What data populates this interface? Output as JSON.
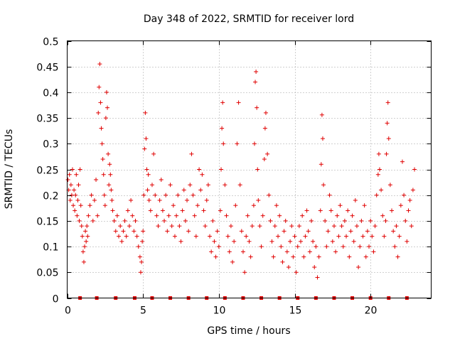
{
  "chart_data": {
    "type": "scatter",
    "title": "Day 348 of 2022, SRMTID for receiver lord",
    "xlabel": "GPS time / hours",
    "ylabel": "SRMTID / TECUs",
    "xlim": [
      0,
      24
    ],
    "ylim": [
      0,
      0.5
    ],
    "x_ticks": [
      0,
      5,
      10,
      15,
      20
    ],
    "x_tick_labels": [
      "0",
      "5",
      "10",
      "15",
      "20"
    ],
    "y_ticks": [
      0,
      0.05,
      0.1,
      0.15,
      0.2,
      0.25,
      0.3,
      0.35,
      0.4,
      0.45,
      0.5
    ],
    "y_tick_labels": [
      "0",
      "0.05",
      "0.1",
      "0.15",
      "0.2",
      "0.25",
      "0.3",
      "0.35",
      "0.4",
      "0.45",
      "0.5"
    ],
    "grid": true,
    "marker": "+",
    "color": "#e00000",
    "zero_markers_x": [
      0.85,
      1.95,
      3.2,
      4.45,
      5.6,
      6.8,
      8.0,
      9.2,
      10.4,
      11.6,
      12.8,
      14.0,
      15.2,
      16.4,
      17.6,
      18.8,
      20.0,
      21.2,
      22.4
    ],
    "series": [
      {
        "name": "SRMTID",
        "points": [
          [
            0.05,
            0.23
          ],
          [
            0.1,
            0.21
          ],
          [
            0.15,
            0.24
          ],
          [
            0.2,
            0.19
          ],
          [
            0.25,
            0.22
          ],
          [
            0.3,
            0.2
          ],
          [
            0.35,
            0.25
          ],
          [
            0.4,
            0.18
          ],
          [
            0.45,
            0.21
          ],
          [
            0.5,
            0.17
          ],
          [
            0.55,
            0.2
          ],
          [
            0.6,
            0.24
          ],
          [
            0.65,
            0.16
          ],
          [
            0.7,
            0.19
          ],
          [
            0.75,
            0.22
          ],
          [
            0.8,
            0.15
          ],
          [
            0.85,
            0.25
          ],
          [
            0.9,
            0.18
          ],
          [
            0.95,
            0.14
          ],
          [
            1.0,
            0.12
          ],
          [
            1.05,
            0.09
          ],
          [
            1.1,
            0.07
          ],
          [
            1.15,
            0.1
          ],
          [
            1.2,
            0.13
          ],
          [
            1.25,
            0.11
          ],
          [
            1.3,
            0.14
          ],
          [
            1.35,
            0.12
          ],
          [
            1.4,
            0.16
          ],
          [
            1.5,
            0.18
          ],
          [
            1.6,
            0.2
          ],
          [
            1.7,
            0.15
          ],
          [
            1.8,
            0.19
          ],
          [
            1.9,
            0.23
          ],
          [
            2.0,
            0.16
          ],
          [
            2.05,
            0.36
          ],
          [
            2.1,
            0.41
          ],
          [
            2.15,
            0.455
          ],
          [
            2.2,
            0.38
          ],
          [
            2.25,
            0.33
          ],
          [
            2.3,
            0.3
          ],
          [
            2.35,
            0.27
          ],
          [
            2.4,
            0.24
          ],
          [
            2.45,
            0.2
          ],
          [
            2.5,
            0.18
          ],
          [
            2.55,
            0.35
          ],
          [
            2.6,
            0.4
          ],
          [
            2.65,
            0.37
          ],
          [
            2.7,
            0.28
          ],
          [
            2.75,
            0.22
          ],
          [
            2.8,
            0.26
          ],
          [
            2.85,
            0.24
          ],
          [
            2.9,
            0.21
          ],
          [
            2.95,
            0.19
          ],
          [
            3.0,
            0.17
          ],
          [
            3.1,
            0.15
          ],
          [
            3.2,
            0.13
          ],
          [
            3.3,
            0.16
          ],
          [
            3.4,
            0.12
          ],
          [
            3.5,
            0.14
          ],
          [
            3.6,
            0.11
          ],
          [
            3.7,
            0.13
          ],
          [
            3.8,
            0.15
          ],
          [
            3.9,
            0.12
          ],
          [
            4.0,
            0.17
          ],
          [
            4.1,
            0.14
          ],
          [
            4.2,
            0.19
          ],
          [
            4.3,
            0.16
          ],
          [
            4.4,
            0.13
          ],
          [
            4.5,
            0.15
          ],
          [
            4.6,
            0.12
          ],
          [
            4.7,
            0.1
          ],
          [
            4.8,
            0.08
          ],
          [
            4.85,
            0.05
          ],
          [
            4.9,
            0.07
          ],
          [
            4.95,
            0.11
          ],
          [
            5.0,
            0.13
          ],
          [
            5.05,
            0.2
          ],
          [
            5.1,
            0.29
          ],
          [
            5.15,
            0.36
          ],
          [
            5.2,
            0.31
          ],
          [
            5.25,
            0.25
          ],
          [
            5.3,
            0.21
          ],
          [
            5.35,
            0.24
          ],
          [
            5.4,
            0.19
          ],
          [
            5.5,
            0.17
          ],
          [
            5.6,
            0.22
          ],
          [
            5.7,
            0.28
          ],
          [
            5.8,
            0.2
          ],
          [
            5.9,
            0.16
          ],
          [
            6.0,
            0.14
          ],
          [
            6.1,
            0.19
          ],
          [
            6.2,
            0.23
          ],
          [
            6.3,
            0.17
          ],
          [
            6.4,
            0.15
          ],
          [
            6.5,
            0.2
          ],
          [
            6.6,
            0.13
          ],
          [
            6.7,
            0.16
          ],
          [
            6.8,
            0.22
          ],
          [
            6.9,
            0.14
          ],
          [
            7.0,
            0.18
          ],
          [
            7.1,
            0.12
          ],
          [
            7.2,
            0.16
          ],
          [
            7.3,
            0.2
          ],
          [
            7.4,
            0.14
          ],
          [
            7.5,
            0.11
          ],
          [
            7.6,
            0.17
          ],
          [
            7.7,
            0.21
          ],
          [
            7.8,
            0.15
          ],
          [
            7.9,
            0.19
          ],
          [
            8.0,
            0.13
          ],
          [
            8.1,
            0.22
          ],
          [
            8.2,
            0.28
          ],
          [
            8.3,
            0.2
          ],
          [
            8.4,
            0.16
          ],
          [
            8.5,
            0.12
          ],
          [
            8.6,
            0.18
          ],
          [
            8.7,
            0.25
          ],
          [
            8.8,
            0.21
          ],
          [
            8.9,
            0.24
          ],
          [
            9.0,
            0.17
          ],
          [
            9.1,
            0.14
          ],
          [
            9.2,
            0.19
          ],
          [
            9.3,
            0.22
          ],
          [
            9.4,
            0.12
          ],
          [
            9.5,
            0.09
          ],
          [
            9.6,
            0.15
          ],
          [
            9.7,
            0.11
          ],
          [
            9.8,
            0.08
          ],
          [
            9.9,
            0.13
          ],
          [
            10.0,
            0.1
          ],
          [
            10.1,
            0.17
          ],
          [
            10.15,
            0.25
          ],
          [
            10.2,
            0.33
          ],
          [
            10.25,
            0.38
          ],
          [
            10.3,
            0.3
          ],
          [
            10.4,
            0.22
          ],
          [
            10.5,
            0.16
          ],
          [
            10.6,
            0.12
          ],
          [
            10.7,
            0.09
          ],
          [
            10.8,
            0.14
          ],
          [
            10.9,
            0.07
          ],
          [
            11.0,
            0.11
          ],
          [
            11.1,
            0.18
          ],
          [
            11.2,
            0.3
          ],
          [
            11.3,
            0.38
          ],
          [
            11.4,
            0.22
          ],
          [
            11.5,
            0.13
          ],
          [
            11.6,
            0.09
          ],
          [
            11.7,
            0.05
          ],
          [
            11.8,
            0.12
          ],
          [
            11.9,
            0.16
          ],
          [
            12.0,
            0.11
          ],
          [
            12.1,
            0.08
          ],
          [
            12.2,
            0.14
          ],
          [
            12.3,
            0.18
          ],
          [
            12.35,
            0.3
          ],
          [
            12.4,
            0.42
          ],
          [
            12.45,
            0.44
          ],
          [
            12.5,
            0.37
          ],
          [
            12.55,
            0.25
          ],
          [
            12.6,
            0.19
          ],
          [
            12.7,
            0.14
          ],
          [
            12.8,
            0.1
          ],
          [
            12.9,
            0.16
          ],
          [
            13.0,
            0.27
          ],
          [
            13.05,
            0.33
          ],
          [
            13.1,
            0.36
          ],
          [
            13.2,
            0.28
          ],
          [
            13.3,
            0.2
          ],
          [
            13.4,
            0.15
          ],
          [
            13.5,
            0.11
          ],
          [
            13.6,
            0.08
          ],
          [
            13.7,
            0.14
          ],
          [
            13.8,
            0.18
          ],
          [
            13.9,
            0.12
          ],
          [
            14.0,
            0.16
          ],
          [
            14.1,
            0.1
          ],
          [
            14.2,
            0.07
          ],
          [
            14.3,
            0.13
          ],
          [
            14.4,
            0.15
          ],
          [
            14.5,
            0.09
          ],
          [
            14.6,
            0.06
          ],
          [
            14.7,
            0.11
          ],
          [
            14.8,
            0.14
          ],
          [
            14.9,
            0.08
          ],
          [
            15.0,
            0.12
          ],
          [
            15.1,
            0.05
          ],
          [
            15.2,
            0.1
          ],
          [
            15.3,
            0.14
          ],
          [
            15.4,
            0.11
          ],
          [
            15.5,
            0.16
          ],
          [
            15.6,
            0.08
          ],
          [
            15.7,
            0.12
          ],
          [
            15.8,
            0.17
          ],
          [
            15.9,
            0.13
          ],
          [
            16.0,
            0.09
          ],
          [
            16.1,
            0.15
          ],
          [
            16.2,
            0.11
          ],
          [
            16.3,
            0.06
          ],
          [
            16.4,
            0.1
          ],
          [
            16.5,
            0.04
          ],
          [
            16.6,
            0.08
          ],
          [
            16.7,
            0.17
          ],
          [
            16.75,
            0.26
          ],
          [
            16.8,
            0.356
          ],
          [
            16.85,
            0.31
          ],
          [
            16.9,
            0.22
          ],
          [
            17.0,
            0.15
          ],
          [
            17.1,
            0.1
          ],
          [
            17.2,
            0.13
          ],
          [
            17.3,
            0.2
          ],
          [
            17.4,
            0.17
          ],
          [
            17.5,
            0.11
          ],
          [
            17.6,
            0.14
          ],
          [
            17.7,
            0.09
          ],
          [
            17.8,
            0.16
          ],
          [
            17.9,
            0.12
          ],
          [
            18.0,
            0.18
          ],
          [
            18.1,
            0.14
          ],
          [
            18.2,
            0.1
          ],
          [
            18.3,
            0.15
          ],
          [
            18.4,
            0.12
          ],
          [
            18.5,
            0.17
          ],
          [
            18.6,
            0.08
          ],
          [
            18.7,
            0.13
          ],
          [
            18.8,
            0.16
          ],
          [
            18.9,
            0.11
          ],
          [
            19.0,
            0.19
          ],
          [
            19.1,
            0.14
          ],
          [
            19.2,
            0.06
          ],
          [
            19.3,
            0.1
          ],
          [
            19.4,
            0.15
          ],
          [
            19.5,
            0.12
          ],
          [
            19.6,
            0.18
          ],
          [
            19.7,
            0.08
          ],
          [
            19.8,
            0.13
          ],
          [
            19.9,
            0.1
          ],
          [
            20.0,
            0.15
          ],
          [
            20.1,
            0.12
          ],
          [
            20.2,
            0.09
          ],
          [
            20.3,
            0.14
          ],
          [
            20.4,
            0.2
          ],
          [
            20.5,
            0.24
          ],
          [
            20.55,
            0.28
          ],
          [
            20.6,
            0.25
          ],
          [
            20.7,
            0.21
          ],
          [
            20.8,
            0.16
          ],
          [
            20.9,
            0.12
          ],
          [
            21.0,
            0.15
          ],
          [
            21.05,
            0.28
          ],
          [
            21.1,
            0.34
          ],
          [
            21.15,
            0.38
          ],
          [
            21.2,
            0.31
          ],
          [
            21.3,
            0.22
          ],
          [
            21.4,
            0.17
          ],
          [
            21.5,
            0.13
          ],
          [
            21.6,
            0.1
          ],
          [
            21.7,
            0.14
          ],
          [
            21.8,
            0.08
          ],
          [
            21.9,
            0.12
          ],
          [
            22.0,
            0.18
          ],
          [
            22.1,
            0.265
          ],
          [
            22.2,
            0.2
          ],
          [
            22.3,
            0.15
          ],
          [
            22.4,
            0.11
          ],
          [
            22.5,
            0.17
          ],
          [
            22.6,
            0.19
          ],
          [
            22.7,
            0.14
          ],
          [
            22.8,
            0.21
          ],
          [
            22.9,
            0.25
          ]
        ]
      }
    ]
  }
}
